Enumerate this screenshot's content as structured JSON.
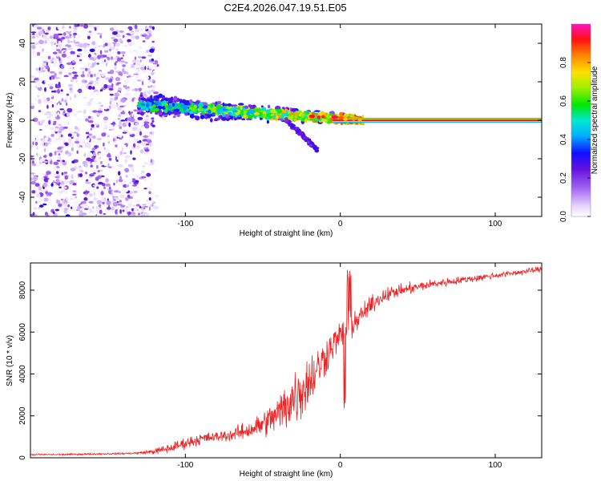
{
  "title": "C2E4.2026.047.19.51.E05",
  "chart_data": [
    {
      "type": "heatmap",
      "panel": "spectrogram",
      "xlabel": "Height of straight line (km)",
      "ylabel": "Frequency (Hz)",
      "xlim": [
        -200,
        130
      ],
      "ylim": [
        -50,
        50
      ],
      "xticks": [
        -100,
        0,
        100
      ],
      "xtick_labels": [
        "-100",
        "0",
        "100"
      ],
      "yticks": [
        -40,
        -20,
        0,
        20,
        40
      ],
      "ytick_labels": [
        "-40",
        "-20",
        "0",
        "20",
        "40"
      ],
      "colorbar": {
        "label": "Normalized spectral amplitude",
        "range": [
          0,
          1
        ],
        "ticks": [
          0.0,
          0.2,
          0.4,
          0.6,
          0.8
        ],
        "tick_labels": [
          "0.0",
          "0.2",
          "0.4",
          "0.6",
          "0.8"
        ]
      },
      "features": {
        "noise_region_x": [
          -200,
          -120
        ],
        "noise_amplitude": 0.15,
        "scatter_band": {
          "x_start": -130,
          "x_end": 15,
          "freq_start": 8,
          "freq_end": 0,
          "halfwidth_hz": 7
        },
        "downward_branch": {
          "x_start": -35,
          "x_end": -15,
          "freq_start": 0,
          "freq_end": -15
        },
        "carrier_line": {
          "x_start": -5,
          "x_end": 130,
          "freq": 0,
          "amplitude": 1.0
        }
      }
    },
    {
      "type": "line",
      "panel": "snr",
      "xlabel": "Height of straight line (km)",
      "ylabel": "SNR (10 * v/v)",
      "xlim": [
        -200,
        130
      ],
      "ylim": [
        0,
        9300
      ],
      "xticks": [
        -100,
        0,
        100
      ],
      "xtick_labels": [
        "-100",
        "0",
        "100"
      ],
      "yticks": [
        0,
        2000,
        4000,
        6000,
        8000
      ],
      "ytick_labels": [
        "0",
        "2000",
        "4000",
        "6000",
        "8000"
      ],
      "series": [
        {
          "name": "SNR",
          "color": "#ee2222",
          "x": [
            -200,
            -180,
            -160,
            -140,
            -130,
            -120,
            -110,
            -100,
            -90,
            -80,
            -70,
            -60,
            -50,
            -40,
            -35,
            -30,
            -25,
            -20,
            -15,
            -10,
            -5,
            0,
            5,
            10,
            15,
            20,
            25,
            30,
            40,
            50,
            60,
            70,
            80,
            90,
            100,
            110,
            120,
            130
          ],
          "y": [
            150,
            150,
            180,
            200,
            230,
            300,
            450,
            700,
            900,
            1000,
            1100,
            1300,
            1600,
            2100,
            2500,
            2900,
            3200,
            3700,
            4200,
            4800,
            5400,
            5800,
            6200,
            6500,
            6900,
            7300,
            7600,
            7800,
            8000,
            8150,
            8300,
            8400,
            8500,
            8600,
            8700,
            8800,
            8900,
            9000
          ],
          "noise": [
            60,
            60,
            60,
            60,
            80,
            200,
            350,
            400,
            400,
            350,
            450,
            600,
            900,
            1300,
            1800,
            2200,
            2000,
            1900,
            1700,
            1400,
            1100,
            1100,
            900,
            800,
            700,
            600,
            550,
            500,
            400,
            350,
            300,
            300,
            250,
            250,
            220,
            200,
            200,
            200
          ]
        }
      ]
    }
  ]
}
